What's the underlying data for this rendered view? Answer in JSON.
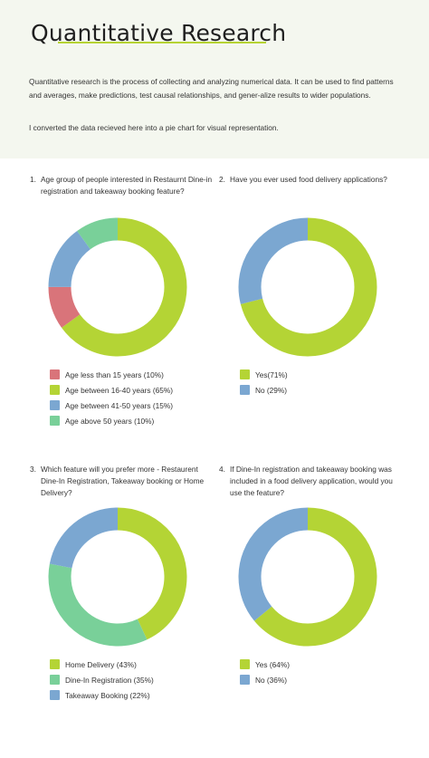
{
  "header": {
    "title": "Quantitative Research",
    "intro": "Quantitative research is the process of collecting and analyzing numerical data. It can be used to find patterns and averages, make predictions, test causal relationships, and gener-alize results to wider populations.",
    "note": "I converted the data recieved here into a pie chart for visual representation."
  },
  "chart_data": [
    {
      "type": "pie",
      "number": "1.",
      "title": "Age group of people interested in Restaurnt Dine-in registration and takeaway booking feature?",
      "categories": [
        "Age less than 15 years (10%)",
        "Age between 16-40 years (65%)",
        "Age between 41-50 years (15%)",
        "Age above 50 years (10%)"
      ],
      "values": [
        10,
        65,
        15,
        10
      ],
      "colors": [
        "#d9747a",
        "#b4d435",
        "#7ba7d1",
        "#79d099"
      ],
      "order": [
        1,
        0,
        2,
        3
      ],
      "legend": "bottom"
    },
    {
      "type": "pie",
      "number": "2.",
      "title": "Have you ever used food delivery applications?",
      "categories": [
        "Yes(71%)",
        "No (29%)"
      ],
      "values": [
        71,
        29
      ],
      "colors": [
        "#b4d435",
        "#7ba7d1"
      ],
      "order": [
        0,
        1
      ],
      "legend": "bottom"
    },
    {
      "type": "pie",
      "number": "3.",
      "title": "Which feature will you prefer more - Restaurent Dine-In Registration, Takeaway booking or Home Delivery?",
      "categories": [
        "Home Delivery (43%)",
        "Dine-In Registration (35%)",
        "Takeaway Booking (22%)"
      ],
      "values": [
        43,
        35,
        22
      ],
      "colors": [
        "#b4d435",
        "#79d099",
        "#7ba7d1"
      ],
      "order": [
        0,
        1,
        2
      ],
      "legend": "bottom"
    },
    {
      "type": "pie",
      "number": "4.",
      "title": "If Dine-In registration and takeaway booking was included in a food delivery application, would you use the feature?",
      "categories": [
        "Yes (64%)",
        "No (36%)"
      ],
      "values": [
        64,
        36
      ],
      "colors": [
        "#b4d435",
        "#7ba7d1"
      ],
      "order": [
        0,
        1
      ],
      "legend": "bottom"
    }
  ]
}
